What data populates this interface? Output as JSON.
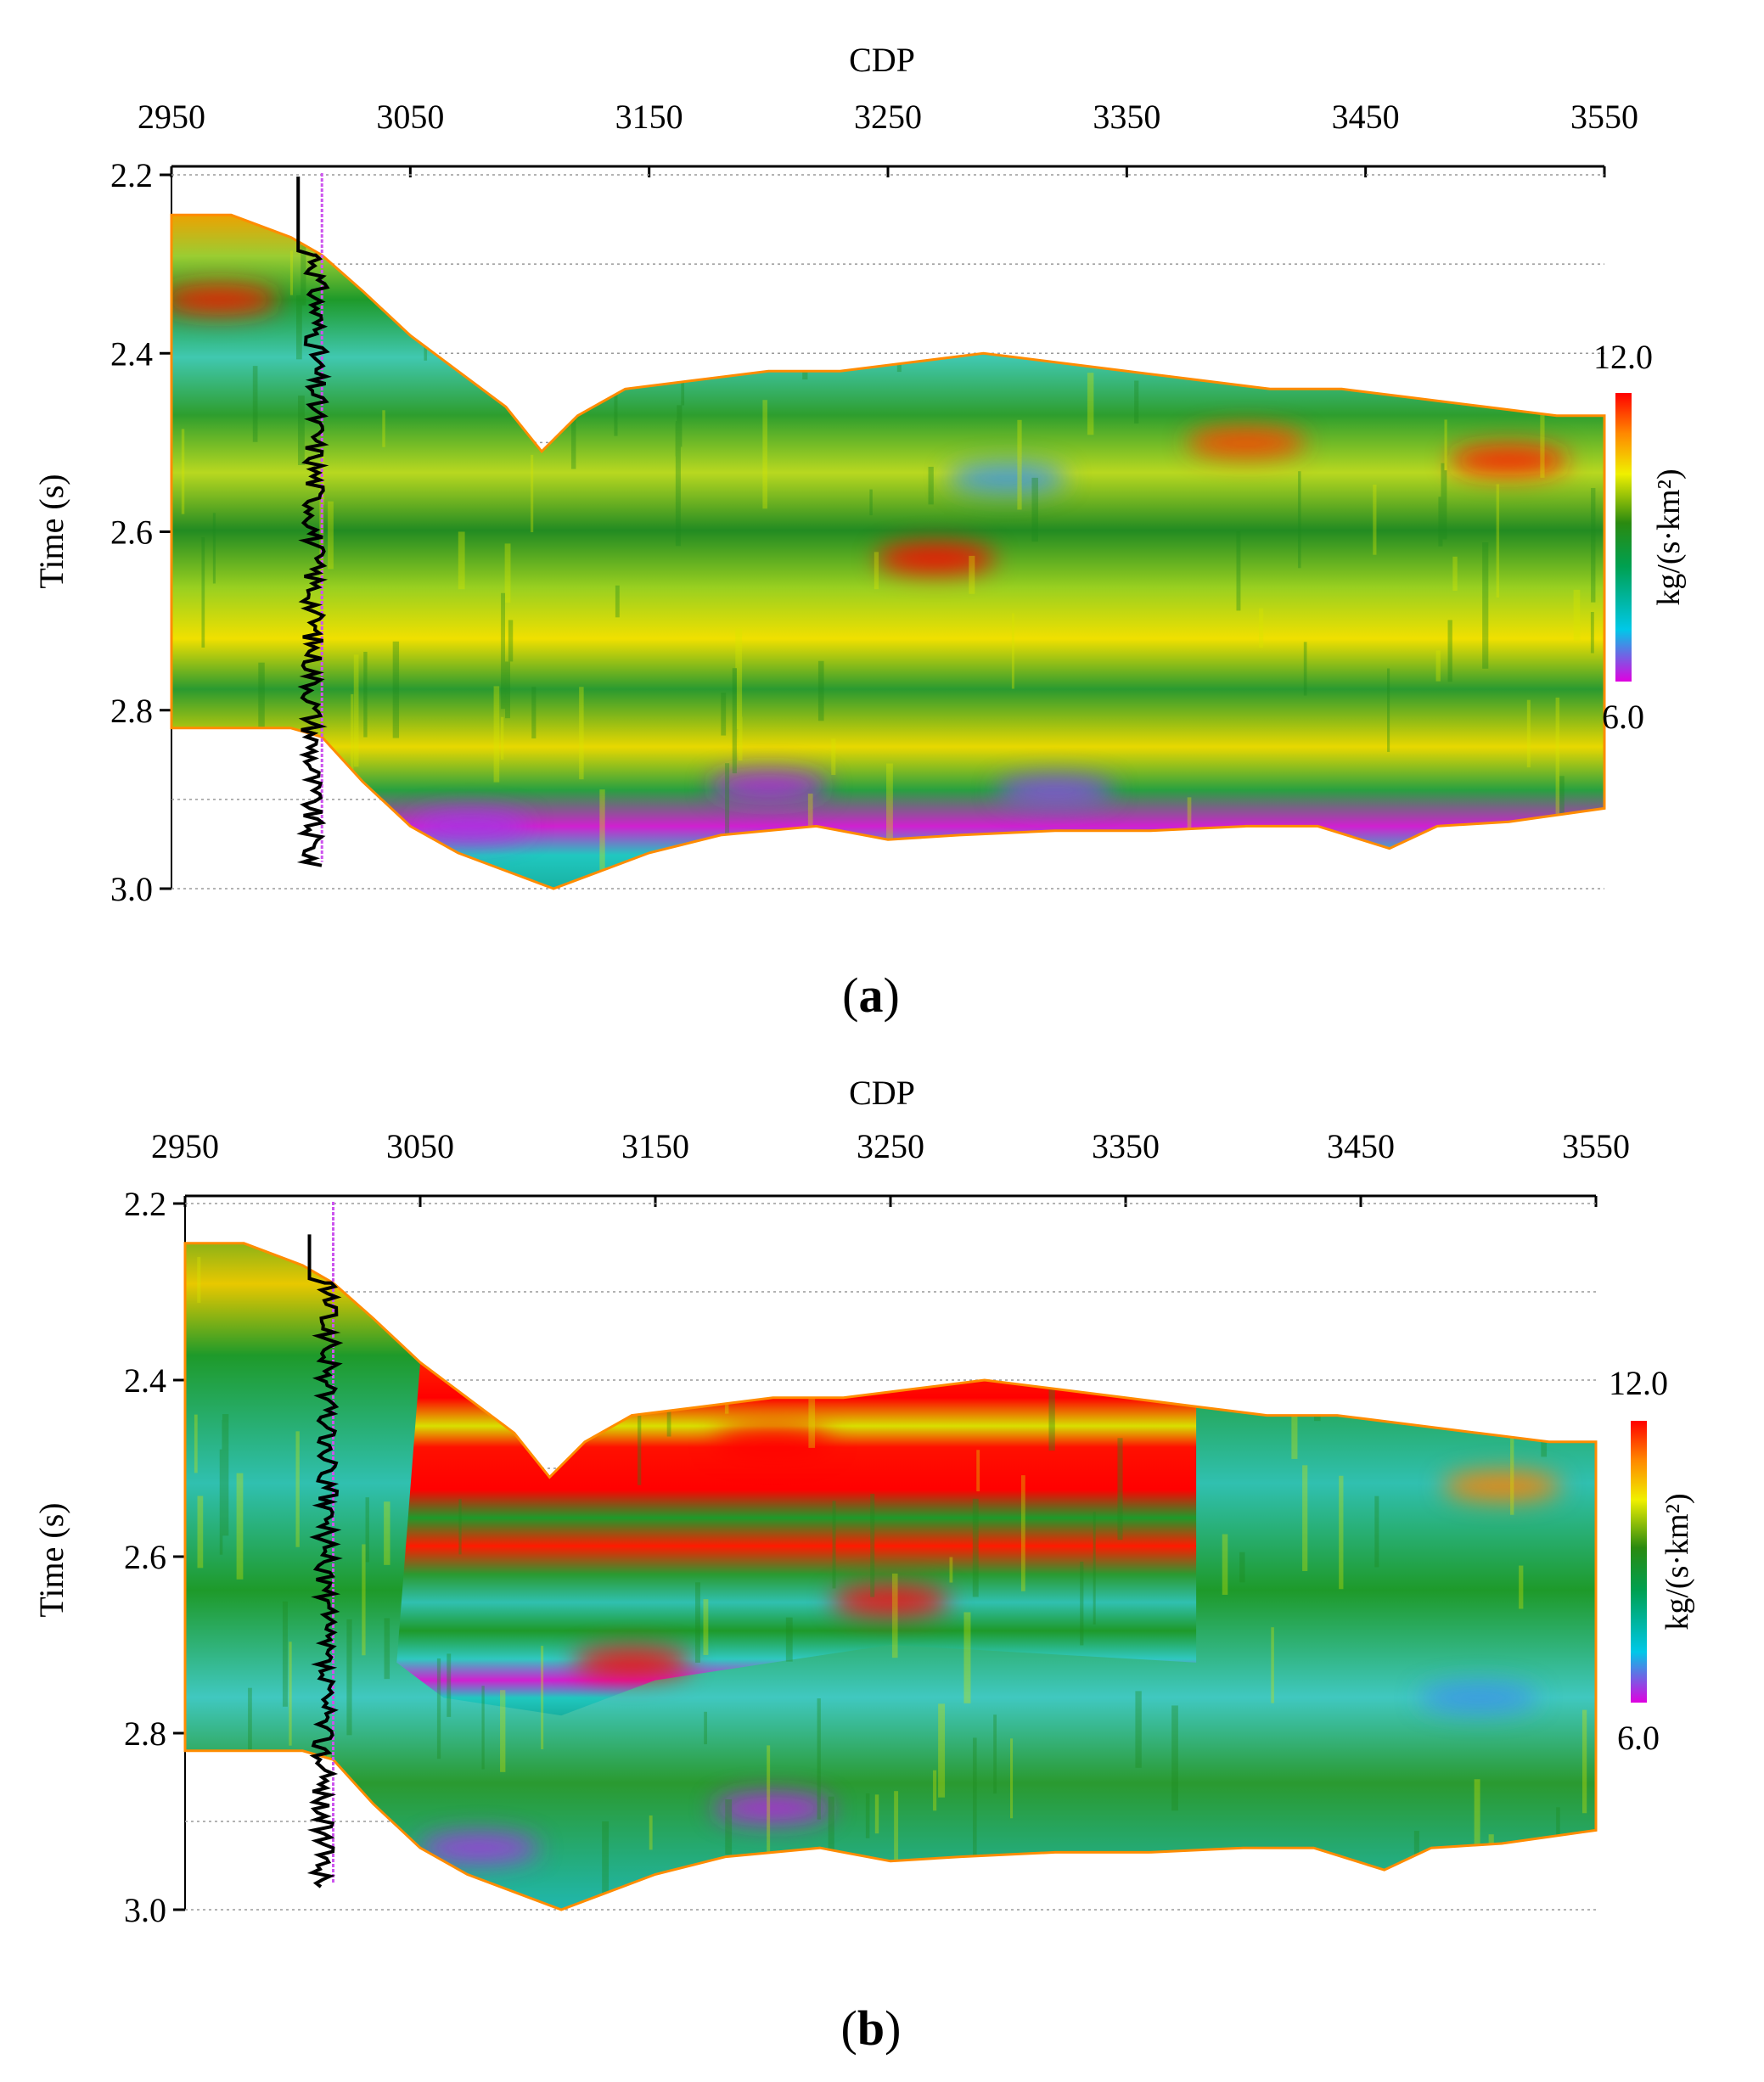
{
  "figure": {
    "panels": [
      {
        "id": "a",
        "caption_letter": "a"
      },
      {
        "id": "b",
        "caption_letter": "b"
      }
    ]
  },
  "chart_data": [
    {
      "type": "heatmap",
      "panel": "a",
      "title": "",
      "xlabel": "CDP",
      "ylabel": "Time (s)",
      "xticks": [
        2950,
        3050,
        3150,
        3250,
        3350,
        3450,
        3550
      ],
      "yticks": [
        "2.2",
        "2.4",
        "2.6",
        "2.8",
        "3.0"
      ],
      "xlim": [
        2950,
        3550
      ],
      "ylim": [
        2.2,
        3.0
      ],
      "colorbar": {
        "label": "kg/(s·km²)",
        "max_label": "12.0",
        "min_label": "6.0",
        "min": 6.0,
        "max": 12.0
      },
      "well_cdp": 3013,
      "top_boundary": [
        [
          2950,
          2.245
        ],
        [
          2975,
          2.245
        ],
        [
          3000,
          2.27
        ],
        [
          3013,
          2.29
        ],
        [
          3030,
          2.33
        ],
        [
          3050,
          2.38
        ],
        [
          3070,
          2.42
        ],
        [
          3090,
          2.46
        ],
        [
          3105,
          2.51
        ],
        [
          3120,
          2.47
        ],
        [
          3140,
          2.44
        ],
        [
          3170,
          2.43
        ],
        [
          3200,
          2.42
        ],
        [
          3230,
          2.42
        ],
        [
          3260,
          2.41
        ],
        [
          3290,
          2.4
        ],
        [
          3320,
          2.41
        ],
        [
          3350,
          2.42
        ],
        [
          3380,
          2.43
        ],
        [
          3410,
          2.44
        ],
        [
          3440,
          2.44
        ],
        [
          3470,
          2.45
        ],
        [
          3500,
          2.46
        ],
        [
          3530,
          2.47
        ],
        [
          3550,
          2.47
        ]
      ],
      "bottom_boundary": [
        [
          2950,
          2.82
        ],
        [
          3000,
          2.82
        ],
        [
          3013,
          2.83
        ],
        [
          3030,
          2.88
        ],
        [
          3050,
          2.93
        ],
        [
          3070,
          2.96
        ],
        [
          3090,
          2.98
        ],
        [
          3110,
          3.0
        ],
        [
          3130,
          2.98
        ],
        [
          3150,
          2.96
        ],
        [
          3180,
          2.94
        ],
        [
          3220,
          2.93
        ],
        [
          3250,
          2.945
        ],
        [
          3280,
          2.94
        ],
        [
          3320,
          2.935
        ],
        [
          3360,
          2.935
        ],
        [
          3400,
          2.93
        ],
        [
          3430,
          2.93
        ],
        [
          3460,
          2.955
        ],
        [
          3480,
          2.93
        ],
        [
          3510,
          2.925
        ],
        [
          3550,
          2.91
        ]
      ],
      "anomalies": [
        {
          "cdp": 2970,
          "time": 2.34,
          "value": 11.8
        },
        {
          "cdp": 3270,
          "time": 2.63,
          "value": 12.0
        },
        {
          "cdp": 3400,
          "time": 2.5,
          "value": 11.6
        },
        {
          "cdp": 3510,
          "time": 2.52,
          "value": 11.8
        },
        {
          "cdp": 3300,
          "time": 2.54,
          "value": 6.8
        },
        {
          "cdp": 3200,
          "time": 2.885,
          "value": 6.2
        },
        {
          "cdp": 3320,
          "time": 2.89,
          "value": 6.4
        },
        {
          "cdp": 3075,
          "time": 2.93,
          "value": 6.3
        }
      ]
    },
    {
      "type": "heatmap",
      "panel": "b",
      "title": "",
      "xlabel": "CDP",
      "ylabel": "Time (s)",
      "xticks": [
        2950,
        3050,
        3150,
        3250,
        3350,
        3450,
        3550
      ],
      "yticks": [
        "2.2",
        "2.4",
        "2.6",
        "2.8",
        "3.0"
      ],
      "xlim": [
        2950,
        3550
      ],
      "ylim": [
        2.2,
        3.0
      ],
      "colorbar": {
        "label": "kg/(s·km²)",
        "max_label": "12.0",
        "min_label": "6.0",
        "min": 6.0,
        "max": 12.0
      },
      "well_cdp": 3013,
      "top_boundary": [
        [
          2950,
          2.245
        ],
        [
          2975,
          2.245
        ],
        [
          3000,
          2.27
        ],
        [
          3013,
          2.29
        ],
        [
          3030,
          2.33
        ],
        [
          3050,
          2.38
        ],
        [
          3070,
          2.42
        ],
        [
          3090,
          2.46
        ],
        [
          3105,
          2.51
        ],
        [
          3120,
          2.47
        ],
        [
          3140,
          2.44
        ],
        [
          3170,
          2.43
        ],
        [
          3200,
          2.42
        ],
        [
          3230,
          2.42
        ],
        [
          3260,
          2.41
        ],
        [
          3290,
          2.4
        ],
        [
          3320,
          2.41
        ],
        [
          3350,
          2.42
        ],
        [
          3380,
          2.43
        ],
        [
          3410,
          2.44
        ],
        [
          3440,
          2.44
        ],
        [
          3470,
          2.45
        ],
        [
          3500,
          2.46
        ],
        [
          3530,
          2.47
        ],
        [
          3550,
          2.47
        ]
      ],
      "bottom_boundary": [
        [
          2950,
          2.82
        ],
        [
          3000,
          2.82
        ],
        [
          3013,
          2.83
        ],
        [
          3030,
          2.88
        ],
        [
          3050,
          2.93
        ],
        [
          3070,
          2.96
        ],
        [
          3090,
          2.98
        ],
        [
          3110,
          3.0
        ],
        [
          3130,
          2.98
        ],
        [
          3150,
          2.96
        ],
        [
          3180,
          2.94
        ],
        [
          3220,
          2.93
        ],
        [
          3250,
          2.945
        ],
        [
          3280,
          2.94
        ],
        [
          3320,
          2.935
        ],
        [
          3360,
          2.935
        ],
        [
          3400,
          2.93
        ],
        [
          3430,
          2.93
        ],
        [
          3460,
          2.955
        ],
        [
          3480,
          2.93
        ],
        [
          3510,
          2.925
        ],
        [
          3550,
          2.91
        ]
      ],
      "anomalies": [
        {
          "cdp": 3200,
          "time": 2.47,
          "value": 12.0
        },
        {
          "cdp": 3250,
          "time": 2.65,
          "value": 12.0
        },
        {
          "cdp": 3140,
          "time": 2.72,
          "value": 12.0
        },
        {
          "cdp": 3510,
          "time": 2.52,
          "value": 11.2
        },
        {
          "cdp": 3200,
          "time": 2.885,
          "value": 6.2
        },
        {
          "cdp": 3075,
          "time": 2.93,
          "value": 6.3
        },
        {
          "cdp": 3500,
          "time": 2.76,
          "value": 6.8
        }
      ]
    }
  ]
}
